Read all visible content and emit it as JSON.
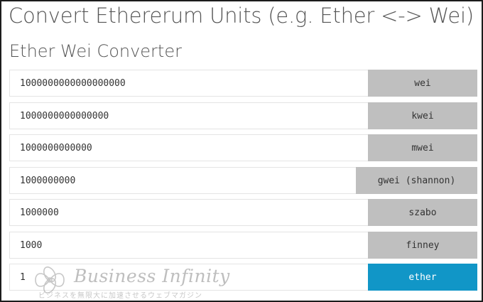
{
  "header": {
    "title": "Convert Ethererum Units (e.g. Ether <-> Wei)",
    "subtitle": "Ether Wei Converter"
  },
  "converter": {
    "rows": [
      {
        "value": "1000000000000000000",
        "unit": "wei"
      },
      {
        "value": "1000000000000000",
        "unit": "kwei"
      },
      {
        "value": "1000000000000",
        "unit": "mwei"
      },
      {
        "value": "1000000000",
        "unit": "gwei (shannon)"
      },
      {
        "value": "1000000",
        "unit": "szabo"
      },
      {
        "value": "1000",
        "unit": "finney"
      },
      {
        "value": "1",
        "unit": "ether"
      }
    ],
    "active_unit": "ether",
    "colors": {
      "unit_default": "#bfbfbf",
      "unit_active": "#1196c7"
    }
  },
  "watermark": {
    "name": "Business Infinity",
    "tagline": "ビジネスを無限大に加速させるウェブマガジン"
  }
}
